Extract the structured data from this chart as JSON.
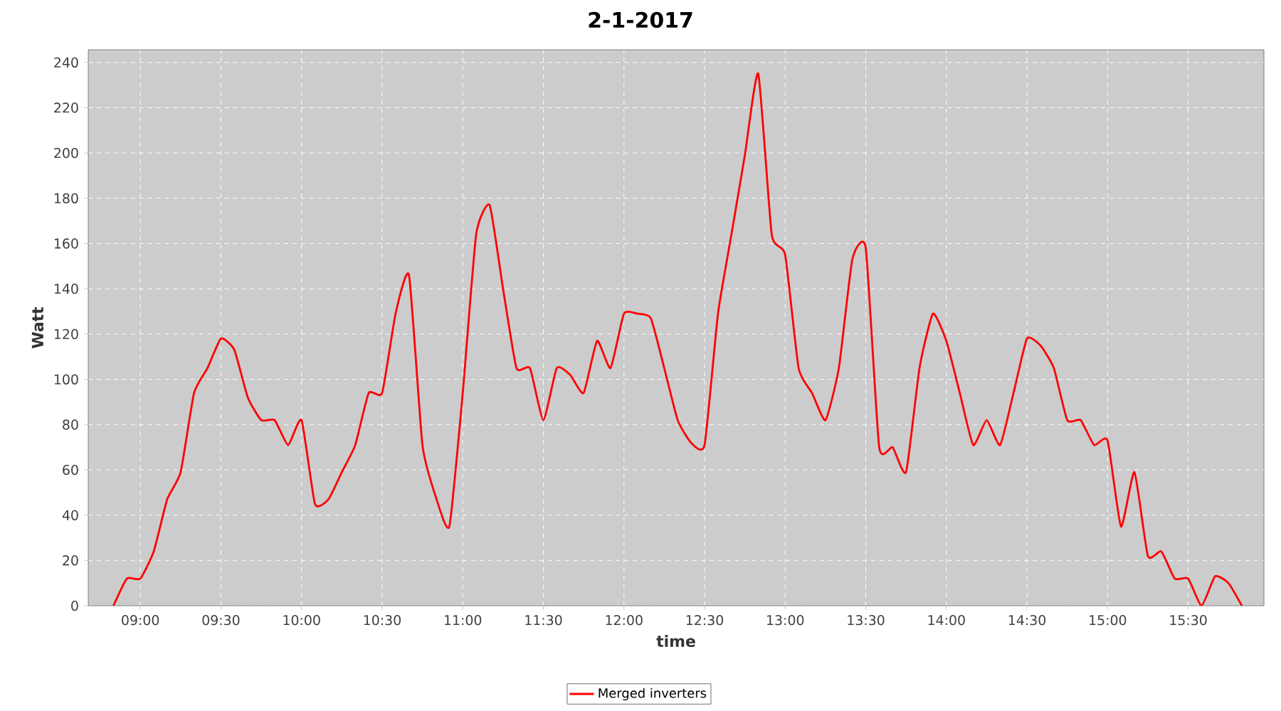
{
  "chart_data": {
    "type": "line",
    "title": "2-1-2017",
    "xlabel": "time",
    "ylabel": "Watt",
    "x": [
      8.8333,
      8.9167,
      9,
      9.0833,
      9.1667,
      9.25,
      9.3333,
      9.4167,
      9.5,
      9.5833,
      9.6667,
      9.75,
      9.8333,
      9.9167,
      10,
      10.0833,
      10.1667,
      10.25,
      10.3333,
      10.4167,
      10.5,
      10.5833,
      10.6667,
      10.75,
      10.8333,
      10.9167,
      11,
      11.0833,
      11.1667,
      11.25,
      11.3333,
      11.4167,
      11.5,
      11.5833,
      11.6667,
      11.75,
      11.8333,
      11.9167,
      12,
      12.0833,
      12.1667,
      12.25,
      12.3333,
      12.4167,
      12.5,
      12.5833,
      12.6667,
      12.75,
      12.8333,
      12.9167,
      13,
      13.0833,
      13.1667,
      13.25,
      13.3333,
      13.4167,
      13.5,
      13.5833,
      13.6667,
      13.75,
      13.8333,
      13.9167,
      14,
      14.0833,
      14.1667,
      14.25,
      14.3333,
      14.4167,
      14.5,
      14.5833,
      14.6667,
      14.75,
      14.8333,
      14.9167,
      15,
      15.0833,
      15.1667,
      15.25,
      15.3333,
      15.4167,
      15.5,
      15.5833,
      15.6667,
      15.75,
      15.8333
    ],
    "series": [
      {
        "name": "Merged inverters",
        "color": "#ff0000",
        "values": [
          0,
          12,
          12,
          24,
          47,
          59,
          94,
          105,
          118,
          113,
          92,
          82,
          82,
          71,
          82,
          45,
          47,
          59,
          71,
          94,
          94,
          129,
          146,
          71,
          48,
          35,
          94,
          164,
          177,
          140,
          105,
          105,
          82,
          105,
          102,
          94,
          117,
          105,
          129,
          129,
          127,
          105,
          82,
          72,
          71,
          129,
          164,
          199,
          235,
          164,
          155,
          105,
          94,
          82,
          105,
          153,
          158,
          70,
          70,
          59,
          105,
          129,
          117,
          94,
          71,
          82,
          71,
          94,
          118,
          115,
          105,
          82,
          82,
          71,
          73,
          35,
          59,
          22,
          24,
          12,
          12,
          0,
          13,
          10,
          0
        ]
      }
    ],
    "xlim": [
      8.677,
      15.97
    ],
    "ylim": [
      0,
      245.6
    ],
    "xticks": [
      {
        "value": 9,
        "label": "09:00"
      },
      {
        "value": 9.5,
        "label": "09:30"
      },
      {
        "value": 10,
        "label": "10:00"
      },
      {
        "value": 10.5,
        "label": "10:30"
      },
      {
        "value": 11,
        "label": "11:00"
      },
      {
        "value": 11.5,
        "label": "11:30"
      },
      {
        "value": 12,
        "label": "12:00"
      },
      {
        "value": 12.5,
        "label": "12:30"
      },
      {
        "value": 13,
        "label": "13:00"
      },
      {
        "value": 13.5,
        "label": "13:30"
      },
      {
        "value": 14,
        "label": "14:00"
      },
      {
        "value": 14.5,
        "label": "14:30"
      },
      {
        "value": 15,
        "label": "15:00"
      },
      {
        "value": 15.5,
        "label": "15:30"
      }
    ],
    "yticks": [
      0,
      20,
      40,
      60,
      80,
      100,
      120,
      140,
      160,
      180,
      200,
      220,
      240
    ],
    "grid": true,
    "legend": "bottom",
    "line_style": "solid"
  }
}
